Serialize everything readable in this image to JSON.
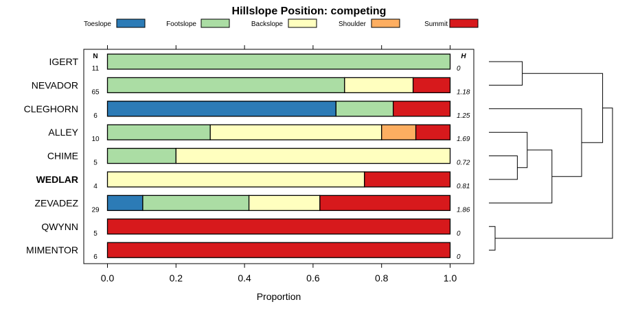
{
  "chart_data": {
    "type": "bar",
    "orientation": "horizontal",
    "stacked": true,
    "title": "Hillslope Position: competing",
    "xlabel": "Proportion",
    "ylabel": "",
    "xlim": [
      0,
      1
    ],
    "xticks": [
      "0.0",
      "0.2",
      "0.4",
      "0.6",
      "0.8",
      "1.0"
    ],
    "xtick_values": [
      0,
      0.2,
      0.4,
      0.6,
      0.8,
      1.0
    ],
    "n_header": "N",
    "h_header": "H",
    "legend": [
      {
        "name": "Toeslope",
        "color": "#2C7BB6"
      },
      {
        "name": "Footslope",
        "color": "#ABDDA4"
      },
      {
        "name": "Backslope",
        "color": "#FFFFBF"
      },
      {
        "name": "Shoulder",
        "color": "#FDAE61"
      },
      {
        "name": "Summit",
        "color": "#D7191C"
      }
    ],
    "categories": [
      {
        "name": "IGERT",
        "n": "11",
        "h": "0",
        "bold": false,
        "values": [
          0,
          1.0,
          0,
          0,
          0
        ]
      },
      {
        "name": "NEVADOR",
        "n": "65",
        "h": "1.18",
        "bold": false,
        "values": [
          0,
          0.692,
          0.2,
          0,
          0.108
        ]
      },
      {
        "name": "CLEGHORN",
        "n": "6",
        "h": "1.25",
        "bold": false,
        "values": [
          0.667,
          0.167,
          0,
          0,
          0.166
        ]
      },
      {
        "name": "ALLEY",
        "n": "10",
        "h": "1.69",
        "bold": false,
        "values": [
          0,
          0.3,
          0.5,
          0.1,
          0.1
        ]
      },
      {
        "name": "CHIME",
        "n": "5",
        "h": "0.72",
        "bold": false,
        "values": [
          0,
          0.2,
          0.8,
          0,
          0
        ]
      },
      {
        "name": "WEDLAR",
        "n": "4",
        "h": "0.81",
        "bold": true,
        "values": [
          0,
          0,
          0.75,
          0,
          0.25
        ]
      },
      {
        "name": "ZEVADEZ",
        "n": "29",
        "h": "1.86",
        "bold": false,
        "values": [
          0.103,
          0.31,
          0.207,
          0,
          0.38
        ]
      },
      {
        "name": "QWYNN",
        "n": "5",
        "h": "0",
        "bold": false,
        "values": [
          0,
          0,
          0,
          0,
          1.0
        ]
      },
      {
        "name": "MIMENTOR",
        "n": "6",
        "h": "0",
        "bold": false,
        "values": [
          0,
          0,
          0,
          0,
          1.0
        ]
      }
    ],
    "dendrogram": {
      "leaves": [
        "IGERT",
        "NEVADOR",
        "CLEGHORN",
        "ALLEY",
        "CHIME",
        "WEDLAR",
        "ZEVADEZ",
        "QWYNN",
        "MIMENTOR"
      ],
      "merges": [
        {
          "a": "QWYNN",
          "b": "MIMENTOR",
          "height": 0.05
        },
        {
          "a": "IGERT",
          "b": "NEVADOR",
          "height": 0.27
        },
        {
          "a": "CHIME",
          "b": "WEDLAR",
          "height": 0.23
        },
        {
          "a": "ALLEY",
          "b": "CHIME+WEDLAR",
          "height": 0.31
        },
        {
          "a": "ALLEY+CHIME+WEDLAR",
          "b": "ZEVADEZ",
          "height": 0.51
        },
        {
          "a": "CLEGHORN",
          "b": "ALLEY+CHIME+WEDLAR+ZEVADEZ",
          "height": 0.75
        },
        {
          "a": "CLEGHORN+ALLEY+CHIME+WEDLAR+ZEVADEZ",
          "b": "IGERT+NEVADOR",
          "height": 0.92
        },
        {
          "a": "ALL_UPPER",
          "b": "QWYNN+MIMENTOR",
          "height": 1.0
        }
      ]
    }
  }
}
